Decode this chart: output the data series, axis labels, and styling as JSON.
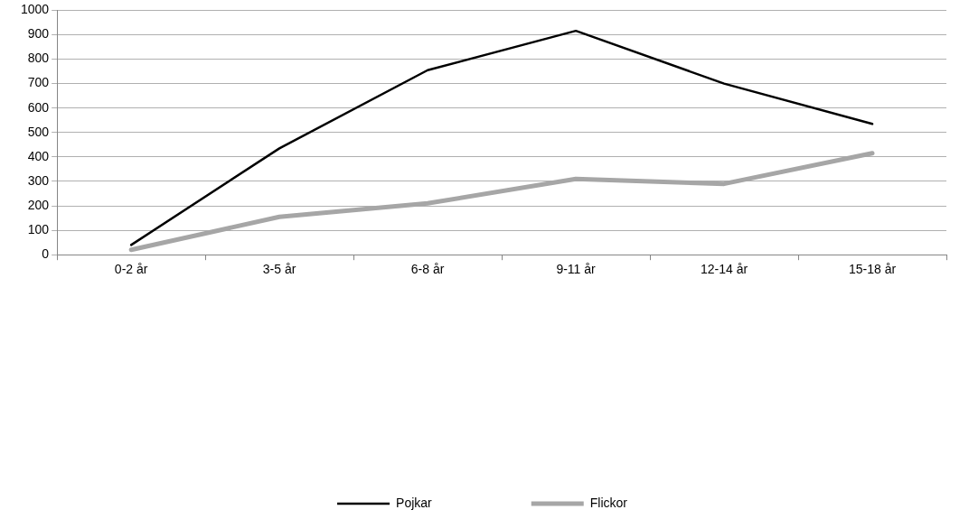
{
  "chart_data": {
    "type": "line",
    "categories": [
      "0-2 år",
      "3-5 år",
      "6-8 år",
      "9-11 år",
      "12-14 år",
      "15-18 år"
    ],
    "series": [
      {
        "name": "Pojkar",
        "color": "#000000",
        "values": [
          40,
          435,
          755,
          916,
          700,
          535
        ]
      },
      {
        "name": "Flickor",
        "color": "#a6a6a6",
        "values": [
          20,
          155,
          210,
          310,
          290,
          415
        ]
      }
    ],
    "ylim": [
      0,
      1000
    ],
    "yticks": [
      0,
      100,
      200,
      300,
      400,
      500,
      600,
      700,
      800,
      900,
      1000
    ],
    "grid": "y",
    "legend": "bottom",
    "marker": "none",
    "line_style": "solid"
  }
}
